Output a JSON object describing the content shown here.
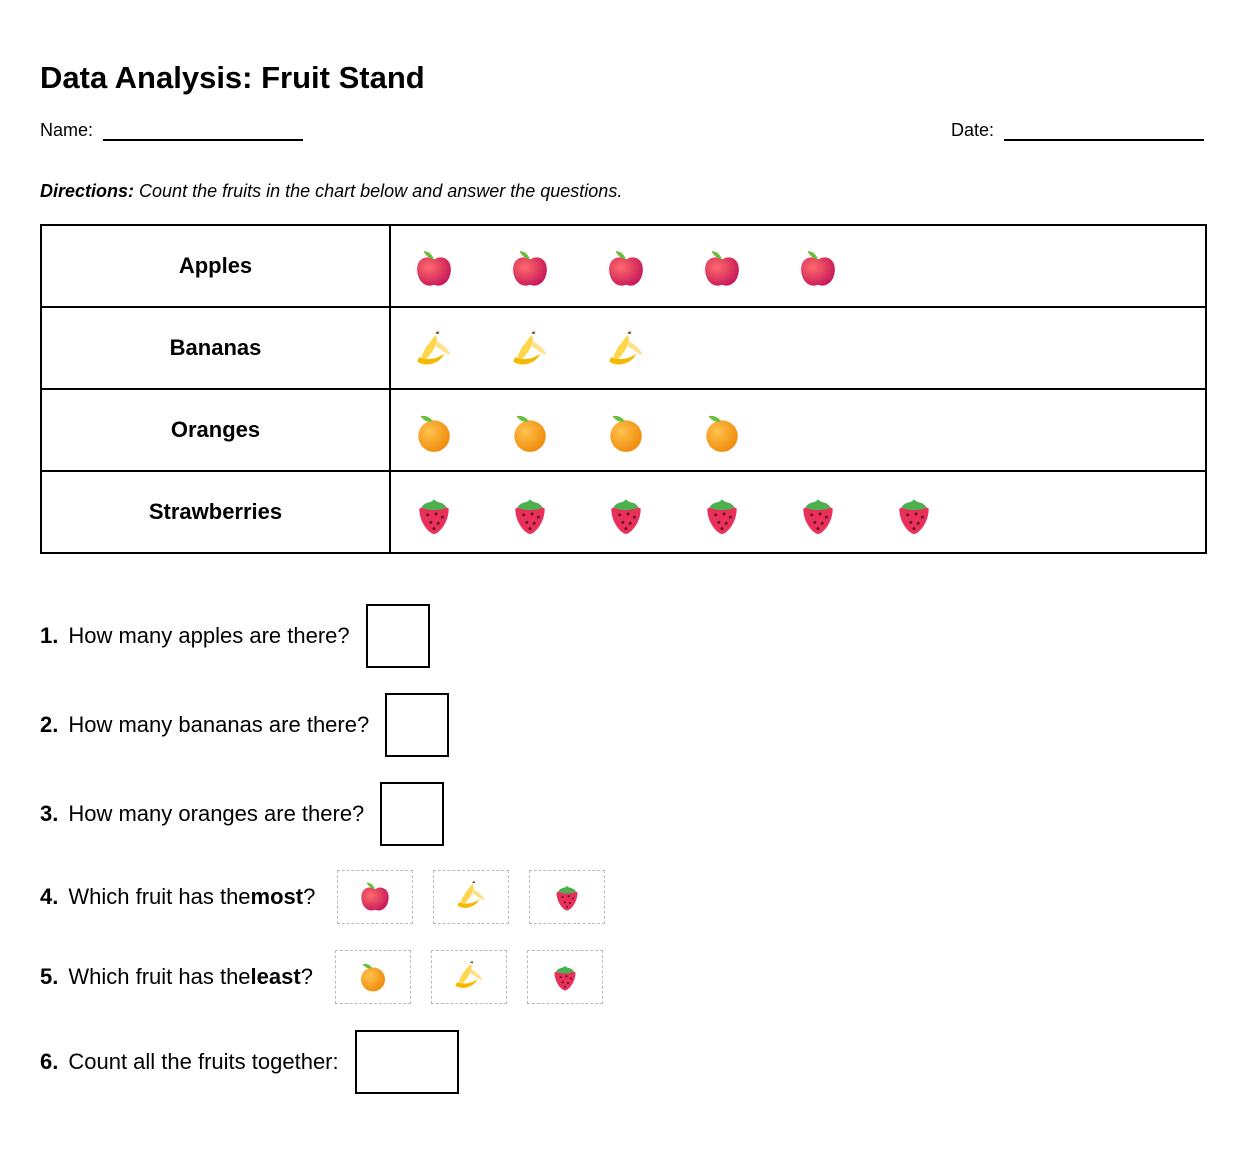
{
  "header": {
    "title": "Data Analysis: Fruit Stand",
    "name_label": "Name:",
    "date_label": "Date:"
  },
  "directions": {
    "label": "Directions:",
    "text": "Count the fruits in the chart below and answer the questions."
  },
  "table": {
    "rows": [
      {
        "label": "Apples",
        "count": 5
      },
      {
        "label": "Bananas",
        "count": 3
      },
      {
        "label": "Oranges",
        "count": 4
      },
      {
        "label": "Strawberries",
        "count": 6
      }
    ]
  },
  "questions": [
    {
      "number": "1.",
      "text": "How many apples are there?"
    },
    {
      "number": "2.",
      "text": "How many bananas are there?"
    },
    {
      "number": "3.",
      "text": "How many oranges are there?"
    },
    {
      "number": "4.",
      "text": "Which fruit has the",
      "emphasis": "most",
      "end": "?"
    },
    {
      "number": "5.",
      "text": "Which fruit has the",
      "emphasis": "least",
      "end": "?"
    },
    {
      "number": "6.",
      "text": "Count all the fruits together:"
    }
  ]
}
